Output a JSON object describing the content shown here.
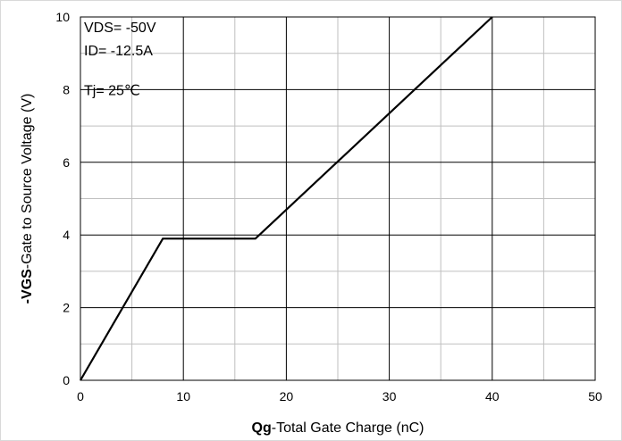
{
  "chart_data": {
    "type": "line",
    "x": [
      0,
      8,
      17,
      40
    ],
    "series": [
      {
        "values": [
          0,
          3.9,
          3.9,
          10
        ]
      }
    ],
    "xlabel_bold": "Qg",
    "xlabel_rest": "-Total Gate Charge (nC)",
    "ylabel_bold": "-VGS",
    "ylabel_rest": "-Gate to Source Voltage (V)",
    "xlim": [
      0,
      50
    ],
    "ylim": [
      0,
      10
    ],
    "xticks": [
      0,
      10,
      20,
      30,
      40,
      50
    ],
    "yticks": [
      0,
      2,
      4,
      6,
      8,
      10
    ],
    "x_minor_step": 5,
    "y_minor_step": 1,
    "grid": true,
    "annotations": [
      "VDS= -50V",
      "ID= -12.5A",
      "Tj= 25℃"
    ],
    "line_color": "#000000",
    "major_grid_color": "#000000",
    "minor_grid_color": "#bfbfbf"
  }
}
